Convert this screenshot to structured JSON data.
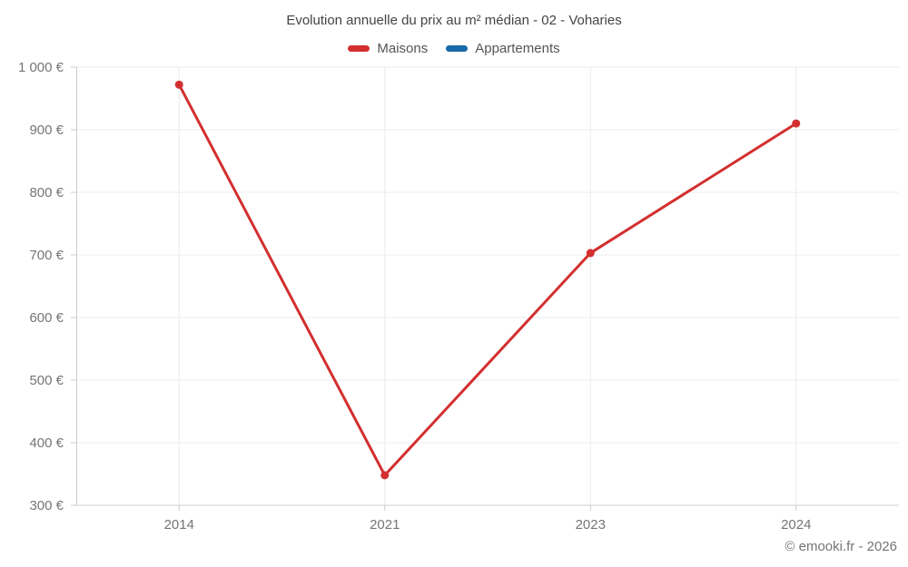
{
  "title": "Evolution annuelle du prix au m² médian - 02 - Voharies",
  "legend": [
    {
      "label": "Maisons",
      "color": "#d32f2f"
    },
    {
      "label": "Appartements",
      "color": "#1769a8"
    }
  ],
  "footer": "© emooki.fr - 2026",
  "palette": {
    "grid": "#ececec",
    "axis": "#cccccc",
    "axis_text": "#757575",
    "title_text": "#444444",
    "legend_text": "#555555",
    "background": "#ffffff"
  },
  "chart_data": {
    "type": "line",
    "categories": [
      "2014",
      "2021",
      "2023",
      "2024"
    ],
    "series": [
      {
        "name": "Maisons",
        "color": "#d32f2f",
        "values": [
          972,
          348,
          703,
          910
        ]
      },
      {
        "name": "Appartements",
        "color": "#1769a8",
        "values": []
      }
    ],
    "title": "Evolution annuelle du prix au m² médian - 02 - Voharies",
    "xlabel": "",
    "ylabel": "",
    "ylim": [
      300,
      1000
    ],
    "ytick_step": 100,
    "yticks": [
      "1 000 €",
      "900 €",
      "800 €",
      "700 €",
      "600 €",
      "500 €",
      "400 €",
      "300 €"
    ],
    "ytick_format": "{value} €",
    "grid": true,
    "legend_position": "top",
    "marker_radius": 4.5,
    "line_width": 3
  }
}
